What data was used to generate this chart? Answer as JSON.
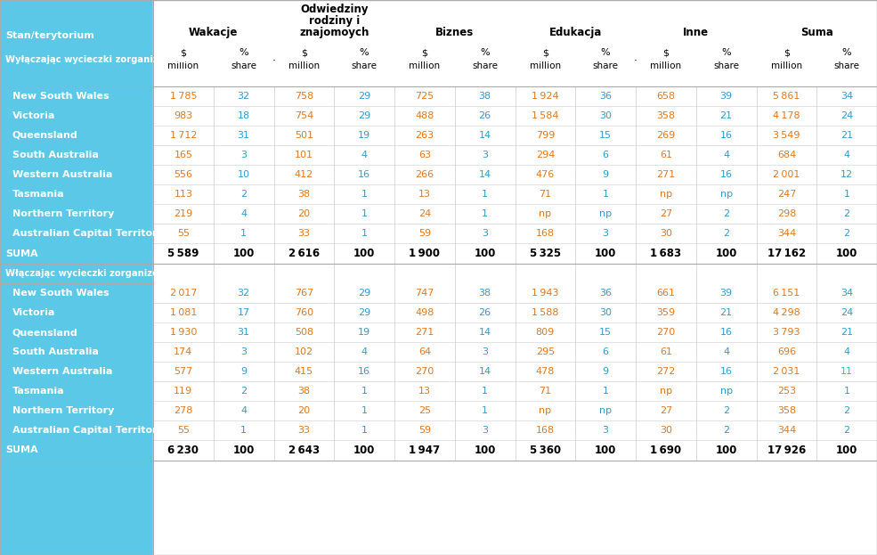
{
  "cyan_bg": "#5bc8e8",
  "white": "#ffffff",
  "orange": "#e07820",
  "blue": "#3399cc",
  "cyan_val": "#00aacc",
  "states": [
    "New South Wales",
    "Victoria",
    "Queensland",
    "South Australia",
    "Western Australia",
    "Tasmania",
    "Northern Territory",
    "Australian Capital Territory"
  ],
  "section1_label": "Wyłączając wycieczki zorganizowane",
  "section2_label": "Włączając wycieczki zorganizowane",
  "section1_data": [
    [
      "1 785",
      "32",
      "758",
      "29",
      "725",
      "38",
      "1 924",
      "36",
      "658",
      "39",
      "5 861",
      "34"
    ],
    [
      "983",
      "18",
      "754",
      "29",
      "488",
      "26",
      "1 584",
      "30",
      "358",
      "21",
      "4 178",
      "24"
    ],
    [
      "1 712",
      "31",
      "501",
      "19",
      "263",
      "14",
      "799",
      "15",
      "269",
      "16",
      "3 549",
      "21"
    ],
    [
      "165",
      "3",
      "101",
      "4",
      "63",
      "3",
      "294",
      "6",
      "61",
      "4",
      "684",
      "4"
    ],
    [
      "556",
      "10",
      "412",
      "16",
      "266",
      "14",
      "476",
      "9",
      "271",
      "16",
      "2 001",
      "12"
    ],
    [
      "113",
      "2",
      "38",
      "1",
      "13",
      "1",
      "71",
      "1",
      "np",
      "np",
      "247",
      "1"
    ],
    [
      "219",
      "4",
      "20",
      "1",
      "24",
      "1",
      "np",
      "np",
      "27",
      "2",
      "298",
      "2"
    ],
    [
      "55",
      "1",
      "33",
      "1",
      "59",
      "3",
      "168",
      "3",
      "30",
      "2",
      "344",
      "2"
    ]
  ],
  "section1_suma": [
    "5 589",
    "100",
    "2 616",
    "100",
    "1 900",
    "100",
    "5 325",
    "100",
    "1 683",
    "100",
    "17 162",
    "100"
  ],
  "section2_data": [
    [
      "2 017",
      "32",
      "767",
      "29",
      "747",
      "38",
      "1 943",
      "36",
      "661",
      "39",
      "6 151",
      "34"
    ],
    [
      "1 081",
      "17",
      "760",
      "29",
      "498",
      "26",
      "1 588",
      "30",
      "359",
      "21",
      "4 298",
      "24"
    ],
    [
      "1 930",
      "31",
      "508",
      "19",
      "271",
      "14",
      "809",
      "15",
      "270",
      "16",
      "3 793",
      "21"
    ],
    [
      "174",
      "3",
      "102",
      "4",
      "64",
      "3",
      "295",
      "6",
      "61",
      "4",
      "696",
      "4"
    ],
    [
      "577",
      "9",
      "415",
      "16",
      "270",
      "14",
      "478",
      "9",
      "272",
      "16",
      "2 031",
      "11"
    ],
    [
      "119",
      "2",
      "38",
      "1",
      "13",
      "1",
      "71",
      "1",
      "np",
      "np",
      "253",
      "1"
    ],
    [
      "278",
      "4",
      "20",
      "1",
      "25",
      "1",
      "np",
      "np",
      "27",
      "2",
      "358",
      "2"
    ],
    [
      "55",
      "1",
      "33",
      "1",
      "59",
      "3",
      "168",
      "3",
      "30",
      "2",
      "344",
      "2"
    ]
  ],
  "section2_suma": [
    "6 230",
    "100",
    "2 643",
    "100",
    "1 947",
    "100",
    "5 360",
    "100",
    "1 690",
    "100",
    "17 926",
    "100"
  ],
  "wa_s2_pct_special": "#00ccee",
  "group_names": [
    "Wakacje",
    "Odwiedziny\nrodziny i\nznajomoych",
    "Biznes",
    "Edukacja",
    "Inne",
    "Suma"
  ]
}
